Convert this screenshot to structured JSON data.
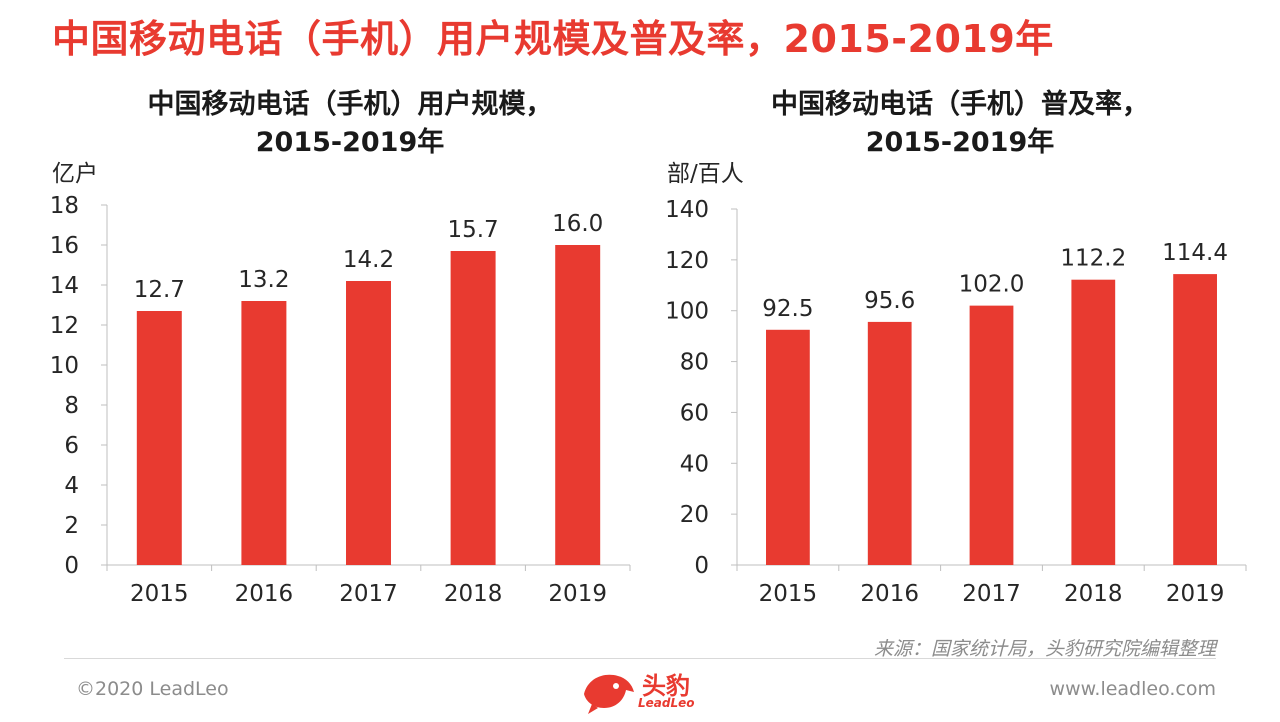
{
  "title": "中国移动电话（手机）用户规模及普及率，2015-2019年",
  "charts": {
    "left": {
      "title_line1": "中国移动电话（手机）用户规模，",
      "title_line2": "2015-2019年",
      "unit": "亿户"
    },
    "right": {
      "title_line1": "中国移动电话（手机）普及率，",
      "title_line2": "2015-2019年",
      "unit": "部/百人"
    }
  },
  "chart_data": [
    {
      "type": "bar",
      "title": "中国移动电话（手机）用户规模，2015-2019年",
      "ylabel": "亿户",
      "categories": [
        "2015",
        "2016",
        "2017",
        "2018",
        "2019"
      ],
      "values": [
        12.7,
        13.2,
        14.2,
        15.7,
        16.0
      ],
      "labels": [
        "12.7",
        "13.2",
        "14.2",
        "15.7",
        "16.0"
      ],
      "ylim": [
        0,
        18
      ],
      "yticks": [
        0,
        2,
        4,
        6,
        8,
        10,
        12,
        14,
        16,
        18
      ],
      "color": "#e83a30",
      "grid": false
    },
    {
      "type": "bar",
      "title": "中国移动电话（手机）普及率，2015-2019年",
      "ylabel": "部/百人",
      "categories": [
        "2015",
        "2016",
        "2017",
        "2018",
        "2019"
      ],
      "values": [
        92.5,
        95.6,
        102.0,
        112.2,
        114.4
      ],
      "labels": [
        "92.5",
        "95.6",
        "102.0",
        "112.2",
        "114.4"
      ],
      "ylim": [
        0,
        140
      ],
      "yticks": [
        0,
        20,
        40,
        60,
        80,
        100,
        120,
        140
      ],
      "color": "#e83a30",
      "grid": false
    }
  ],
  "footer": {
    "source": "来源：国家统计局，头豹研究院编辑整理",
    "copyright": "©2020 LeadLeo",
    "website": "www.leadleo.com",
    "logo_text": "头豹",
    "logo_sub": "LeadLeo"
  },
  "colors": {
    "accent": "#e83a30",
    "muted": "#8c8c8c"
  }
}
